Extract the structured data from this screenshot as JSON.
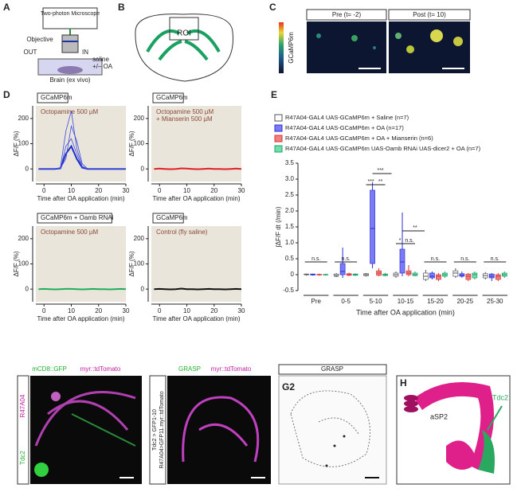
{
  "panels": {
    "a": {
      "label": "A",
      "microscope": "Two-photon Microscope",
      "objective": "Objective",
      "out": "OUT",
      "in": "IN",
      "saline": "saline",
      "oa": "+/– OA",
      "brain": "Brain (ex vivo)"
    },
    "b": {
      "label": "B",
      "roi": "ROI"
    },
    "c": {
      "label": "C",
      "pre": "Pre (t= -2)",
      "post": "Post (t= 10)",
      "indicator": "GCaMP6m"
    },
    "d": {
      "label": "D"
    },
    "e": {
      "label": "E"
    },
    "f": {
      "channel1": "mCD8::GFP",
      "channel2": "myr::tdTomato",
      "side1": "R47A04",
      "side2": "Tdc2"
    },
    "g1": {
      "channel1": "GRASP",
      "channel2": "myr::tdTomato",
      "side1": "Tdc2 > GFP1-10",
      "side2": "R47A04>GFP11.myr::tdTomato"
    },
    "g2": {
      "title": "GRASP",
      "label": "G2"
    },
    "h": {
      "label": "H",
      "neuron1": "aSP2",
      "neuron2": "Tdc2"
    }
  },
  "chart_data": [
    {
      "type": "line",
      "title": "GCaMP6m",
      "annotation": [
        "Octopamine 500 µM"
      ],
      "xlabel": "Time after OA application (min)",
      "ylabel": "ΔF/F (%)",
      "x": [
        -2,
        0,
        2,
        4,
        6,
        8,
        10,
        12,
        14,
        16,
        18,
        20,
        22,
        24,
        26,
        28,
        30
      ],
      "series": [
        {
          "color": "#1f2fc8",
          "values": [
            0,
            0,
            0,
            0,
            2,
            60,
            90,
            40,
            5,
            0,
            0,
            0,
            0,
            0,
            0,
            0,
            0
          ]
        },
        {
          "color": "#3a4ae0",
          "values": [
            0,
            0,
            0,
            0,
            5,
            150,
            230,
            80,
            10,
            0,
            0,
            0,
            0,
            0,
            0,
            0,
            0
          ]
        },
        {
          "color": "#3a4ae0",
          "values": [
            0,
            0,
            0,
            0,
            0,
            90,
            120,
            60,
            5,
            0,
            0,
            0,
            0,
            0,
            0,
            0,
            0
          ]
        },
        {
          "color": "#3a4ae0",
          "values": [
            0,
            0,
            0,
            0,
            3,
            40,
            170,
            110,
            20,
            0,
            0,
            0,
            0,
            0,
            0,
            0,
            0
          ]
        }
      ],
      "xlim": [
        -3,
        30
      ],
      "xticks": [
        0,
        10,
        20,
        30
      ],
      "ylim": [
        -50,
        250
      ],
      "yticks": [
        0,
        100,
        200
      ]
    },
    {
      "type": "line",
      "title": "GCaMP6m",
      "annotation": [
        "Octopamine 500 µM",
        "+ Mianserin 500 µM"
      ],
      "xlabel": "Time after OA application (min)",
      "ylabel": "ΔF/F (%)",
      "x": [
        -2,
        0,
        2,
        4,
        6,
        8,
        10,
        12,
        14,
        16,
        18,
        20,
        22,
        24,
        26,
        28,
        30
      ],
      "series": [
        {
          "color": "#e02020",
          "values": [
            0,
            1,
            0,
            -1,
            0,
            2,
            1,
            0,
            -1,
            0,
            1,
            0,
            0,
            -1,
            0,
            1,
            0
          ]
        }
      ],
      "xlim": [
        -3,
        30
      ],
      "xticks": [
        0,
        10,
        20,
        30
      ],
      "ylim": [
        -50,
        250
      ],
      "yticks": [
        0,
        100,
        200
      ]
    },
    {
      "type": "line",
      "title": "GCaMP6m + Oamb RNAi",
      "annotation": [
        "Octopamine 500 µM"
      ],
      "xlabel": "Time after OA application (min)",
      "ylabel": "ΔF/F (%)",
      "x": [
        -2,
        0,
        2,
        4,
        6,
        8,
        10,
        12,
        14,
        16,
        18,
        20,
        22,
        24,
        26,
        28,
        30
      ],
      "series": [
        {
          "color": "#1fae5a",
          "values": [
            0,
            1,
            0,
            -1,
            0,
            1,
            1,
            0,
            -1,
            0,
            1,
            0,
            0,
            -1,
            0,
            1,
            0
          ]
        }
      ],
      "xlim": [
        -3,
        30
      ],
      "xticks": [
        0,
        10,
        20,
        30
      ],
      "ylim": [
        -50,
        250
      ],
      "yticks": [
        0,
        100,
        200
      ]
    },
    {
      "type": "line",
      "title": "GCaMP6m",
      "annotation": [
        "Control (fly saline)"
      ],
      "xlabel": "Time after OA application (min)",
      "ylabel": "ΔF/F (%)",
      "x": [
        -2,
        0,
        2,
        4,
        6,
        8,
        10,
        12,
        14,
        16,
        18,
        20,
        22,
        24,
        26,
        28,
        30
      ],
      "series": [
        {
          "color": "#111111",
          "values": [
            0,
            1,
            0,
            -1,
            0,
            2,
            0,
            0,
            -1,
            0,
            1,
            0,
            0,
            -1,
            0,
            1,
            0
          ]
        }
      ],
      "xlim": [
        -3,
        30
      ],
      "xticks": [
        0,
        10,
        20,
        30
      ],
      "ylim": [
        -50,
        250
      ],
      "yticks": [
        0,
        100,
        200
      ]
    },
    {
      "type": "box",
      "xlabel": "Time after OA application (min)",
      "ylabel": "∫ΔF/F dt  (/min)",
      "categories": [
        "Pre",
        "0-5",
        "5-10",
        "10-15",
        "15-20",
        "20-25",
        "25-30"
      ],
      "series": [
        {
          "name": "R47A04-GAL4  UAS-GCaMP6m + Saline  (n=7)",
          "color": "#ffffff",
          "stroke": "#555555",
          "low": [
            -0.03,
            -0.07,
            -0.06,
            -0.1,
            -0.2,
            -0.1,
            -0.15
          ],
          "q1": [
            0,
            -0.02,
            -0.03,
            -0.05,
            -0.15,
            -0.05,
            -0.1
          ],
          "median": [
            0,
            -0.05,
            0,
            0,
            -0.05,
            0.05,
            -0.03
          ],
          "q3": [
            0.02,
            0.02,
            0.03,
            0.05,
            0.05,
            0.12,
            0.03
          ],
          "high": [
            0.03,
            0.05,
            0.05,
            0.1,
            0.15,
            0.2,
            0.08
          ]
        },
        {
          "name": "R47A04-GAL4  UAS-GCaMP6m + OA  (n=17)",
          "color": "#7b7cf5",
          "stroke": "#2d2fd6",
          "low": [
            -0.03,
            -0.1,
            0.2,
            -0.05,
            -0.15,
            -0.1,
            -0.2
          ],
          "q1": [
            -0.01,
            0,
            0.35,
            0.05,
            -0.1,
            -0.05,
            -0.1
          ],
          "median": [
            0,
            0.1,
            1.45,
            0.4,
            -0.05,
            -0.02,
            -0.05
          ],
          "q3": [
            0.02,
            0.35,
            2.65,
            0.8,
            0.05,
            0.03,
            0.02
          ],
          "high": [
            0.03,
            0.85,
            2.9,
            1.95,
            0.1,
            0.1,
            0.05
          ]
        },
        {
          "name": "R47A04-GAL4  UAS-GCaMP6m + OA + Mianserin  (n=6)",
          "color": "#f08080",
          "stroke": "#d33333",
          "low": [
            -0.03,
            -0.04,
            -0.05,
            -0.05,
            -0.2,
            -0.2,
            -0.2
          ],
          "q1": [
            -0.01,
            -0.02,
            -0.02,
            0,
            -0.15,
            -0.15,
            -0.15
          ],
          "median": [
            0,
            0,
            0.05,
            0.05,
            -0.05,
            -0.05,
            -0.05
          ],
          "q3": [
            0.01,
            0.03,
            0.12,
            0.12,
            0,
            0.02,
            0
          ],
          "high": [
            0.03,
            0.06,
            0.2,
            0.3,
            0.05,
            0.05,
            0.05
          ]
        },
        {
          "name": "R47A04-GAL4  UAS-GCaMP6m  UAS-Oamb RNAi  UAS-dicer2 + OA  (n=7)",
          "color": "#6ee0a8",
          "stroke": "#22a070",
          "low": [
            -0.03,
            -0.04,
            -0.05,
            -0.05,
            -0.1,
            -0.15,
            -0.1
          ],
          "q1": [
            -0.01,
            -0.02,
            -0.03,
            -0.03,
            -0.05,
            -0.1,
            -0.05
          ],
          "median": [
            0,
            0,
            0,
            0,
            0,
            0,
            0
          ],
          "q3": [
            0.01,
            0.02,
            0.02,
            0.05,
            0.05,
            0.05,
            0.05
          ],
          "high": [
            0.03,
            0.04,
            0.05,
            0.1,
            0.1,
            0.1,
            0.1
          ]
        }
      ],
      "annotations": [
        "n.s.",
        "n.s.",
        "***",
        "**",
        "***",
        "*",
        "n.s.",
        "**",
        "n.s.",
        "n.s.",
        "n.s."
      ],
      "ylim": [
        -0.5,
        3.5
      ],
      "yticks": [
        -0.5,
        0,
        0.5,
        {
          "value": 1,
          "label": "1.0"
        },
        1.5,
        {
          "value": 2,
          "label": "2.0"
        },
        2.5,
        {
          "value": 3,
          "label": "3.0"
        },
        3.5
      ]
    }
  ]
}
